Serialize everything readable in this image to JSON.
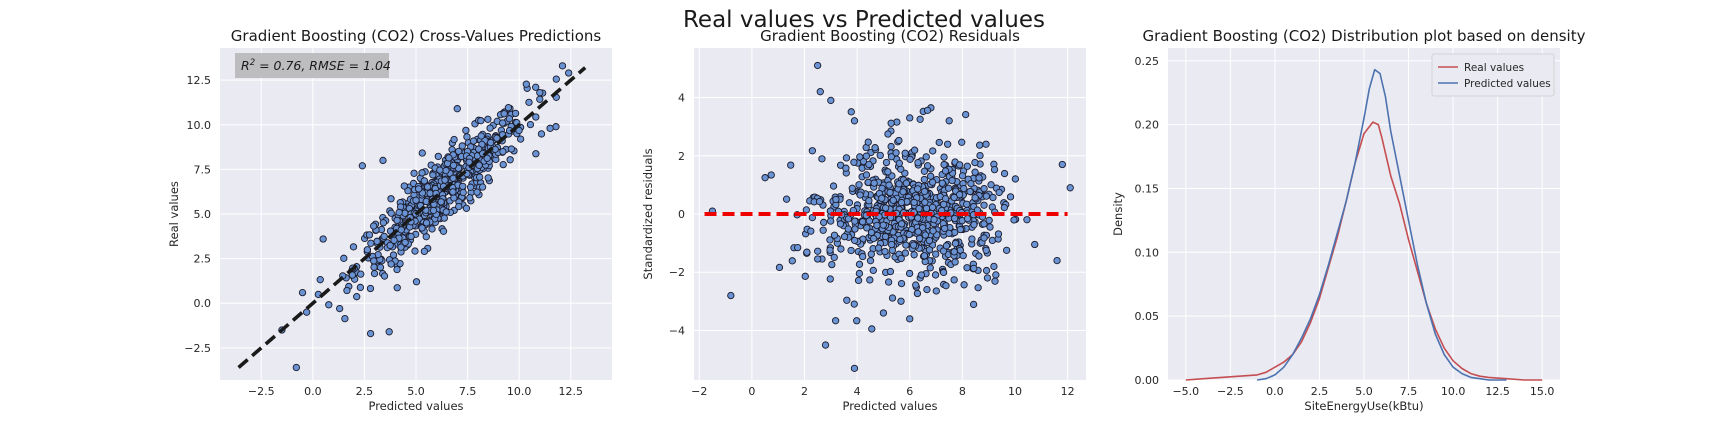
{
  "suptitle": "Real values vs Predicted values",
  "colors": {
    "point": "#6a93d4",
    "point_edge": "#1b1b2b",
    "real": "#c44e52",
    "pred": "#4c72b0",
    "bg": "#eaeaf2",
    "diag": "#1a1a1a",
    "zero": "#ee0000"
  },
  "chart_data": [
    {
      "type": "scatter",
      "title": "Gradient Boosting (CO2) Cross-Values Predictions",
      "xlabel": "Predicted values",
      "ylabel": "Real values",
      "xlim": [
        -4.5,
        14.5
      ],
      "ylim": [
        -4.3,
        14.3
      ],
      "xticks": [
        -2.5,
        0.0,
        2.5,
        5.0,
        7.5,
        10.0,
        12.5
      ],
      "yticks": [
        -2.5,
        0.0,
        2.5,
        5.0,
        7.5,
        10.0,
        12.5
      ],
      "xtick_labels": [
        "−2.5",
        "0.0",
        "2.5",
        "5.0",
        "7.5",
        "10.0",
        "12.5"
      ],
      "ytick_labels": [
        "−2.5",
        "0.0",
        "2.5",
        "5.0",
        "7.5",
        "10.0",
        "12.5"
      ],
      "annotation_prefix": "R",
      "annotation_sup": "2",
      "annotation_rest": " = 0.76, RMSE = 1.04",
      "diagonal": [
        [
          -3.6,
          -3.6
        ],
        [
          13.2,
          13.2
        ]
      ],
      "n_points": 620,
      "points_sample": [
        [
          12.1,
          13.3
        ],
        [
          12.4,
          12.9
        ],
        [
          11.5,
          9.8
        ],
        [
          10.8,
          12.1
        ],
        [
          11.0,
          11.8
        ],
        [
          -0.8,
          -3.6
        ],
        [
          3.7,
          -1.6
        ],
        [
          2.8,
          -1.7
        ],
        [
          -1.5,
          -1.5
        ],
        [
          0.5,
          3.6
        ],
        [
          2.4,
          7.7
        ],
        [
          3.4,
          8.0
        ],
        [
          7.0,
          10.9
        ],
        [
          9.2,
          10.1
        ],
        [
          1.3,
          -0.3
        ],
        [
          -0.3,
          -0.5
        ]
      ]
    },
    {
      "type": "scatter",
      "title": "Gradient Boosting (CO2) Residuals",
      "xlabel": "Predicted values",
      "ylabel": "Standardized residuals",
      "xlim": [
        -2.2,
        12.7
      ],
      "ylim": [
        -5.7,
        5.7
      ],
      "xticks": [
        -2,
        0,
        2,
        4,
        6,
        8,
        10,
        12
      ],
      "yticks": [
        -4,
        -2,
        0,
        2,
        4
      ],
      "xtick_labels": [
        "−2",
        "0",
        "2",
        "4",
        "6",
        "8",
        "10",
        "12"
      ],
      "ytick_labels": [
        "−4",
        "−2",
        "0",
        "2",
        "4"
      ],
      "zero_line": {
        "y": 0,
        "x": [
          -1.8,
          12.0
        ]
      },
      "n_points": 820,
      "points_sample": [
        [
          2.5,
          5.1
        ],
        [
          2.6,
          4.2
        ],
        [
          3.0,
          3.9
        ],
        [
          3.9,
          3.2
        ],
        [
          6.0,
          3.3
        ],
        [
          7.5,
          3.2
        ],
        [
          -1.5,
          0.1
        ],
        [
          -0.8,
          -2.8
        ],
        [
          2.8,
          -4.5
        ],
        [
          3.9,
          -5.3
        ],
        [
          6.0,
          -3.6
        ],
        [
          11.8,
          1.7
        ],
        [
          12.1,
          0.9
        ],
        [
          11.6,
          -1.6
        ],
        [
          9.2,
          -1.8
        ],
        [
          5.0,
          -3.4
        ]
      ]
    },
    {
      "type": "line",
      "title": "Gradient Boosting (CO2) Distribution plot based on density",
      "xlabel": "SiteEnergyUse(kBtu)",
      "ylabel": "Density",
      "xlim": [
        -6.0,
        16.0
      ],
      "ylim": [
        0,
        0.26
      ],
      "xticks": [
        -5.0,
        -2.5,
        0.0,
        2.5,
        5.0,
        7.5,
        10.0,
        12.5,
        15.0
      ],
      "yticks": [
        0.0,
        0.05,
        0.1,
        0.15,
        0.2,
        0.25
      ],
      "xtick_labels": [
        "−5.0",
        "−2.5",
        "0.0",
        "2.5",
        "5.0",
        "7.5",
        "10.0",
        "12.5",
        "15.0"
      ],
      "ytick_labels": [
        "0.00",
        "0.05",
        "0.10",
        "0.15",
        "0.20",
        "0.25"
      ],
      "legend": "top-right",
      "series": [
        {
          "name": "Real values",
          "x": [
            -5.0,
            -4.0,
            -3.0,
            -2.0,
            -1.0,
            -0.5,
            0.0,
            0.5,
            1.0,
            1.5,
            2.0,
            2.5,
            3.0,
            3.5,
            4.0,
            4.5,
            5.0,
            5.5,
            5.8,
            6.0,
            6.5,
            7.0,
            7.5,
            8.0,
            8.5,
            9.0,
            9.5,
            10.0,
            10.5,
            11.0,
            11.5,
            12.0,
            13.0,
            14.0,
            15.0
          ],
          "values": [
            0.0,
            0.001,
            0.002,
            0.003,
            0.004,
            0.006,
            0.01,
            0.014,
            0.02,
            0.03,
            0.045,
            0.064,
            0.088,
            0.112,
            0.14,
            0.17,
            0.193,
            0.202,
            0.2,
            0.19,
            0.16,
            0.138,
            0.11,
            0.085,
            0.06,
            0.04,
            0.025,
            0.015,
            0.009,
            0.005,
            0.003,
            0.002,
            0.001,
            0.0,
            0.0
          ]
        },
        {
          "name": "Predicted values",
          "x": [
            -1.0,
            -0.5,
            0.0,
            0.5,
            1.0,
            1.5,
            2.0,
            2.5,
            3.0,
            3.5,
            4.0,
            4.5,
            5.0,
            5.3,
            5.6,
            5.9,
            6.2,
            6.5,
            7.0,
            7.5,
            8.0,
            8.5,
            9.0,
            9.5,
            10.0,
            10.5,
            11.0,
            11.5,
            12.0,
            13.0
          ],
          "values": [
            0.0,
            0.001,
            0.004,
            0.01,
            0.02,
            0.033,
            0.048,
            0.067,
            0.09,
            0.115,
            0.14,
            0.17,
            0.205,
            0.228,
            0.243,
            0.24,
            0.222,
            0.195,
            0.16,
            0.125,
            0.09,
            0.06,
            0.036,
            0.02,
            0.01,
            0.005,
            0.002,
            0.001,
            0.0,
            0.0
          ]
        }
      ]
    }
  ]
}
